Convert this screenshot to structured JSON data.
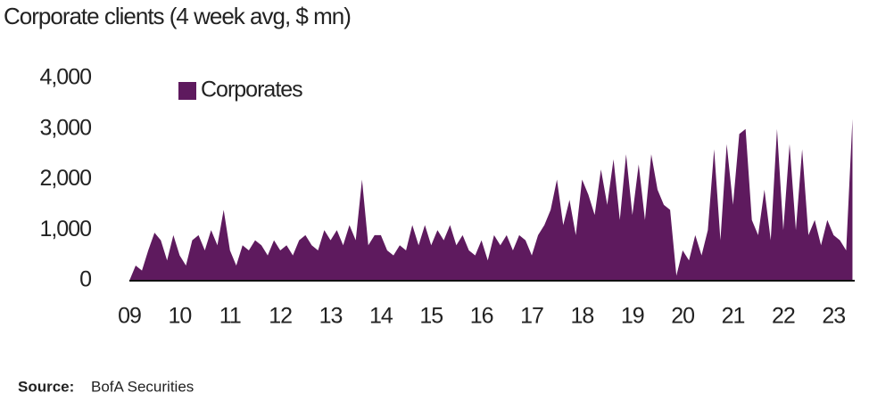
{
  "chart_data": {
    "type": "area",
    "title": "Corporate clients (4 week avg, $ mn)",
    "source_label": "Source:",
    "source": "BofA Securities",
    "x": [
      9,
      9.125,
      9.25,
      9.375,
      9.5,
      9.625,
      9.75,
      9.875,
      10,
      10.125,
      10.25,
      10.375,
      10.5,
      10.625,
      10.75,
      10.875,
      11,
      11.125,
      11.25,
      11.375,
      11.5,
      11.625,
      11.75,
      11.875,
      12,
      12.125,
      12.25,
      12.375,
      12.5,
      12.625,
      12.75,
      12.875,
      13,
      13.125,
      13.25,
      13.375,
      13.5,
      13.625,
      13.75,
      13.875,
      14,
      14.125,
      14.25,
      14.375,
      14.5,
      14.625,
      14.75,
      14.875,
      15,
      15.125,
      15.25,
      15.375,
      15.5,
      15.625,
      15.75,
      15.875,
      16,
      16.125,
      16.25,
      16.375,
      16.5,
      16.625,
      16.75,
      16.875,
      17,
      17.125,
      17.25,
      17.375,
      17.5,
      17.625,
      17.75,
      17.875,
      18,
      18.125,
      18.25,
      18.375,
      18.5,
      18.625,
      18.75,
      18.875,
      19,
      19.125,
      19.25,
      19.375,
      19.5,
      19.625,
      19.75,
      19.875,
      20,
      20.125,
      20.25,
      20.375,
      20.5,
      20.625,
      20.75,
      20.875,
      21,
      21.125,
      21.25,
      21.375,
      21.5,
      21.625,
      21.75,
      21.875,
      22,
      22.125,
      22.25,
      22.375,
      22.5,
      22.625,
      22.75,
      22.875,
      23,
      23.125,
      23.25,
      23.375
    ],
    "series": [
      {
        "name": "Corporates",
        "color": "#5e1a5e",
        "values": [
          0,
          300,
          200,
          600,
          950,
          800,
          400,
          900,
          500,
          300,
          800,
          900,
          600,
          1000,
          700,
          1400,
          600,
          300,
          700,
          600,
          800,
          700,
          500,
          800,
          600,
          700,
          500,
          800,
          900,
          700,
          600,
          1000,
          800,
          1000,
          700,
          1100,
          800,
          2000,
          700,
          900,
          900,
          600,
          500,
          700,
          600,
          1100,
          700,
          1100,
          700,
          1000,
          800,
          1100,
          700,
          900,
          600,
          500,
          800,
          400,
          900,
          700,
          900,
          600,
          900,
          800,
          500,
          900,
          1100,
          1400,
          2000,
          1100,
          1600,
          900,
          2000,
          1700,
          1300,
          2200,
          1500,
          2400,
          1200,
          2500,
          1300,
          2300,
          1200,
          2500,
          1800,
          1500,
          1400,
          100,
          600,
          400,
          900,
          500,
          1000,
          2600,
          800,
          2700,
          1500,
          2900,
          3000,
          1200,
          900,
          1800,
          800,
          3000,
          1000,
          2700,
          1000,
          2600,
          900,
          1200,
          700,
          1200,
          900,
          800,
          600,
          3200
        ]
      }
    ],
    "xlim": [
      9,
      23.42
    ],
    "xticks": [
      {
        "value": 9,
        "label": "09"
      },
      10,
      11,
      12,
      13,
      14,
      15,
      16,
      17,
      18,
      19,
      20,
      21,
      22,
      23
    ],
    "ylim": [
      0,
      4000
    ],
    "yticks": [
      0,
      {
        "value": 1000,
        "label": "1,000"
      },
      {
        "value": 2000,
        "label": "2,000"
      },
      {
        "value": 3000,
        "label": "3,000"
      },
      {
        "value": 4000,
        "label": "4,000"
      }
    ],
    "grid": false,
    "legend": "top-left"
  }
}
